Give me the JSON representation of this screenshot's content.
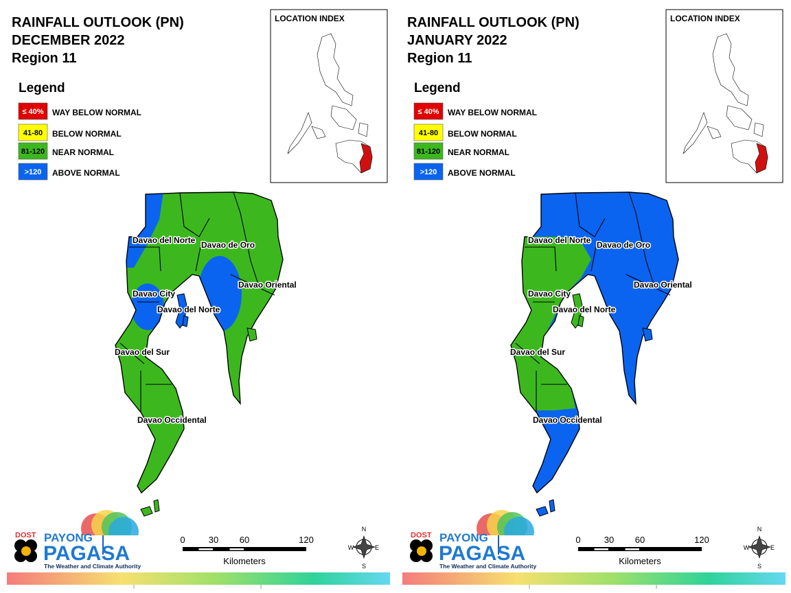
{
  "panels": [
    {
      "title": [
        "RAINFALL OUTLOOK (PN)",
        "DECEMBER 2022",
        "Region 11"
      ],
      "legend": {
        "title": "Legend",
        "items": [
          {
            "box": "≤ 40%",
            "label": "WAY BELOW NORMAL",
            "color": "#e00000"
          },
          {
            "box": "41-80",
            "label": "BELOW NORMAL",
            "color": "#ffff00"
          },
          {
            "box": "81-120",
            "label": "NEAR NORMAL",
            "color": "#3cb81e"
          },
          {
            "box": ">120",
            "label": "ABOVE NORMAL",
            "color": "#0a64f0"
          }
        ]
      },
      "location_index": "LOCATION INDEX",
      "regions": [
        "Davao del Norte",
        "Davao de Oro",
        "Davao Oriental",
        "Davao City",
        "Davao del Norte",
        "Davao del Sur",
        "Davao Occidental"
      ],
      "scale": {
        "ticks": [
          0,
          30,
          60,
          120
        ],
        "unit": "Kilometers"
      },
      "compass": [
        "N",
        "E",
        "S",
        "W"
      ],
      "logo": {
        "agency": "DOST",
        "payong": "PAYONG",
        "pagasa": "PAGASA",
        "tagline": "The Weather and Climate Authority"
      }
    },
    {
      "title": [
        "RAINFALL OUTLOOK (PN)",
        "JANUARY 2022",
        "Region 11"
      ],
      "legend": {
        "title": "Legend",
        "items": [
          {
            "box": "≤ 40%",
            "label": "WAY BELOW NORMAL",
            "color": "#e00000"
          },
          {
            "box": "41-80",
            "label": "BELOW NORMAL",
            "color": "#ffff00"
          },
          {
            "box": "81-120",
            "label": "NEAR NORMAL",
            "color": "#3cb81e"
          },
          {
            "box": ">120",
            "label": "ABOVE NORMAL",
            "color": "#0a64f0"
          }
        ]
      },
      "location_index": "LOCATION INDEX",
      "regions": [
        "Davao del Norte",
        "Davao de Oro",
        "Davao Oriental",
        "Davao City",
        "Davao del Norte",
        "Davao del Sur",
        "Davao Occidental"
      ],
      "scale": {
        "ticks": [
          0,
          30,
          60,
          120
        ],
        "unit": "Kilometers"
      },
      "compass": [
        "N",
        "E",
        "S",
        "W"
      ],
      "logo": {
        "agency": "DOST",
        "payong": "PAYONG",
        "pagasa": "PAGASA",
        "tagline": "The Weather and Climate Authority"
      }
    }
  ]
}
